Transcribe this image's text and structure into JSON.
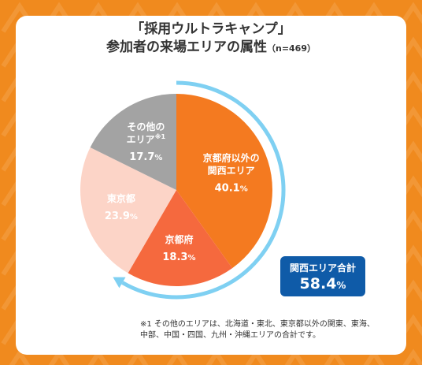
{
  "title": {
    "line1": "「採用ウルトラキャンプ」",
    "line2": "参加者の来場エリアの属性",
    "n_label": "（n=469）"
  },
  "colors": {
    "background": "#F08A1E",
    "card": "#FFFFFF",
    "arrow": "#7FD0F2",
    "badge": "#0F5BA8"
  },
  "chart_data": {
    "type": "pie",
    "unit": "%",
    "slices": [
      {
        "label_lines": [
          "京都府以外の",
          "関西エリア"
        ],
        "value": 40.1,
        "color": "#F47A20",
        "label_color": "#FFFFFF"
      },
      {
        "label_lines": [
          "京都府"
        ],
        "value": 18.3,
        "color": "#F5693E",
        "label_color": "#FFFFFF"
      },
      {
        "label_lines": [
          "東京都"
        ],
        "value": 23.9,
        "color": "#FCD4C7",
        "label_color": "#FFFFFF"
      },
      {
        "label_lines": [
          "その他の",
          "エリア"
        ],
        "superscript": "※1",
        "value": 17.7,
        "color": "#A3A3A3",
        "label_color": "#FFFFFF"
      }
    ]
  },
  "summary_badge": {
    "label": "関西エリア合計",
    "value": "58.4",
    "unit": "%"
  },
  "footnote": {
    "line1": "※1 その他のエリアは、北海道・東北、東京都以外の関東、東海、",
    "line2": "中部、中国・四国、九州・沖縄エリアの合計です。"
  }
}
